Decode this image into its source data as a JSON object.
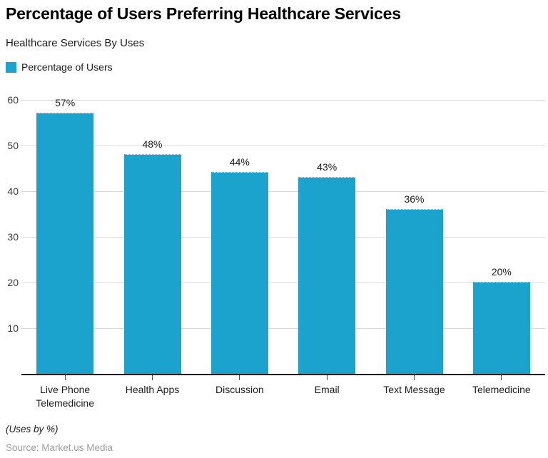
{
  "header": {
    "title": "Percentage of Users Preferring Healthcare Services",
    "subtitle": "Healthcare Services By Uses",
    "legend": {
      "label": "Percentage of Users",
      "swatch_color": "#1ba3ce"
    }
  },
  "chart_data": {
    "type": "bar",
    "title": "Percentage of Users Preferring Healthcare Services",
    "subtitle": "Healthcare Services By Uses",
    "categories": [
      "Live Phone Telemedicine",
      "Health Apps",
      "Discussion",
      "Email",
      "Text Message",
      "Telemedicine"
    ],
    "series": [
      {
        "name": "Percentage of Users",
        "values": [
          57,
          48,
          44,
          43,
          36,
          20
        ]
      }
    ],
    "value_labels": [
      "57%",
      "48%",
      "44%",
      "43%",
      "36%",
      "20%"
    ],
    "xlabel": "",
    "ylabel": "",
    "ylim": [
      0,
      60
    ],
    "yticks": [
      10,
      20,
      30,
      40,
      50,
      60
    ],
    "grid": "horizontal",
    "legend_position": "top-left",
    "bar_color": "#1ba3ce",
    "gridline_color": "#d9d9d9"
  },
  "footer": {
    "note": "(Uses by %)",
    "source": "Source: Market.us Media"
  }
}
